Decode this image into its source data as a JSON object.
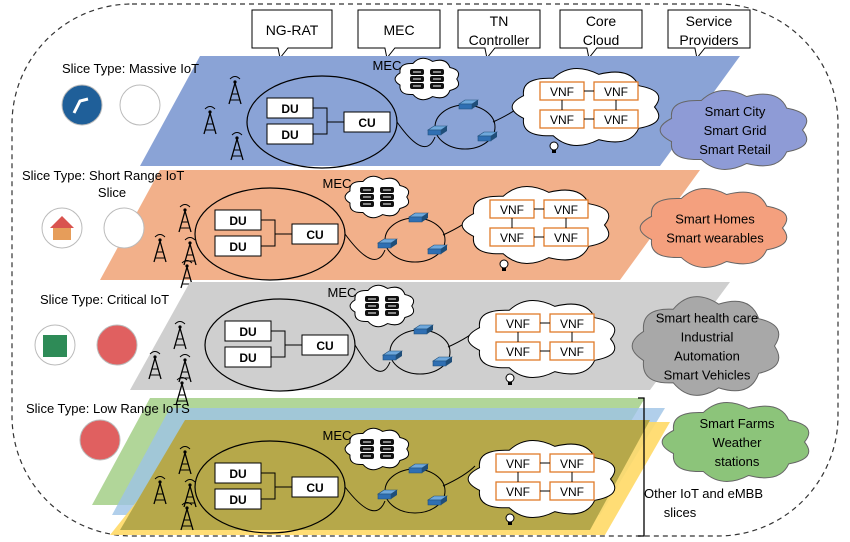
{
  "header_boxes": [
    "NG-RAT",
    "MEC",
    "TN Controller",
    "Core Cloud",
    "Service Providers"
  ],
  "labels": {
    "mec": "MEC",
    "du": "DU",
    "cu": "CU",
    "vnf": "VNF"
  },
  "slices": [
    {
      "type_label": "Slice Type: Massive IoT",
      "services": [
        "Smart City",
        "Smart Grid",
        "Smart Retail"
      ],
      "colors": {
        "plane": "#8aa3d6",
        "cloud": "#8e9bd6"
      }
    },
    {
      "type_label": "Slice Type: Short Range IoT Slice",
      "services": [
        "Smart Homes",
        "Smart wearables"
      ],
      "colors": {
        "plane": "#f2b08a",
        "cloud": "#f4a07e"
      }
    },
    {
      "type_label": "Slice Type: Critical IoT",
      "services": [
        "Smart health care",
        "Industrial",
        "Automation",
        "Smart Vehicles"
      ],
      "colors": {
        "plane": "#cfcfcf",
        "cloud": "#a8a8a8"
      }
    },
    {
      "type_label": "Slice Type: Low Range IoTS",
      "services": [
        "Smart Farms",
        "Weather",
        "stations"
      ],
      "colors": {
        "plane": "#b6a84a",
        "cloud": "#8cc47a"
      }
    }
  ],
  "brace_label": "Other IoT and eMBB slices",
  "colors": {
    "vnf_border": "#e07b2a",
    "switch": "#2f6fb3"
  }
}
